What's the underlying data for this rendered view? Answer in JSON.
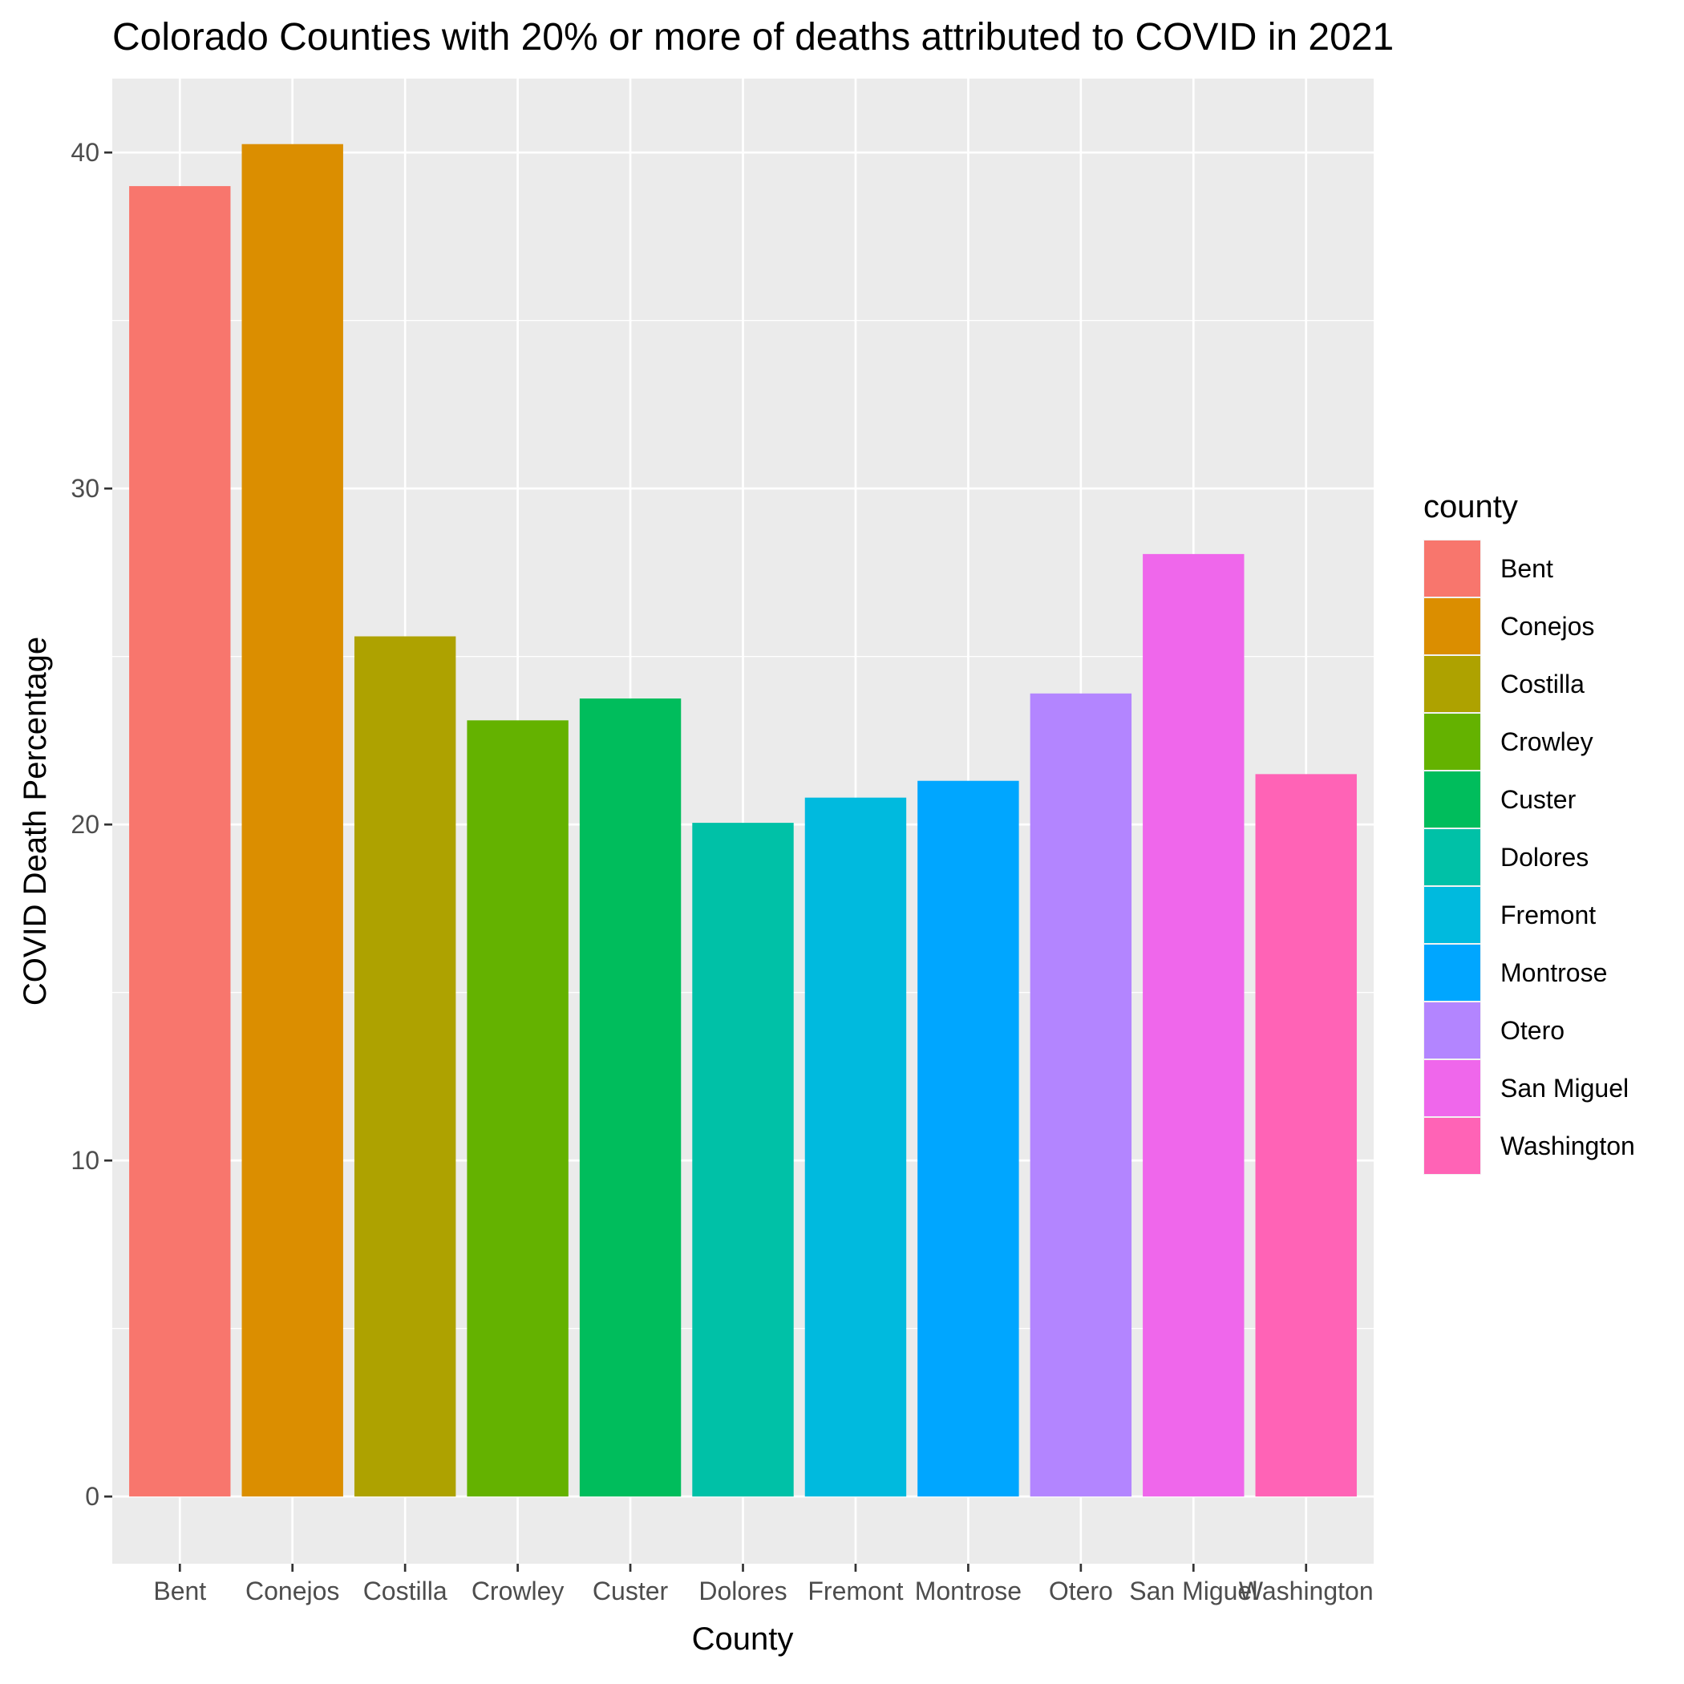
{
  "chart_data": {
    "type": "bar",
    "title": "Colorado Counties with 20% or more of deaths attributed to COVID in 2021",
    "xlabel": "County",
    "ylabel": "COVID Death Percentage",
    "categories": [
      "Bent",
      "Conejos",
      "Costilla",
      "Crowley",
      "Custer",
      "Dolores",
      "Fremont",
      "Montrose",
      "Otero",
      "San Miguel",
      "Washington"
    ],
    "values": [
      39.0,
      40.25,
      25.6,
      23.1,
      23.75,
      20.05,
      20.8,
      21.3,
      23.9,
      28.05,
      21.5
    ],
    "colors": [
      "#F8766D",
      "#DB8E00",
      "#AEA200",
      "#64B200",
      "#00BD5C",
      "#00C1A7",
      "#00BADE",
      "#00A6FF",
      "#B385FF",
      "#EF67EB",
      "#FF63B6"
    ],
    "yticks": [
      0,
      10,
      20,
      30,
      40
    ],
    "ylim": [
      -2.0,
      42.2
    ],
    "grid": true,
    "legend": {
      "title": "county",
      "position": "right",
      "entries": [
        "Bent",
        "Conejos",
        "Costilla",
        "Crowley",
        "Custer",
        "Dolores",
        "Fremont",
        "Montrose",
        "Otero",
        "San Miguel",
        "Washington"
      ]
    }
  }
}
